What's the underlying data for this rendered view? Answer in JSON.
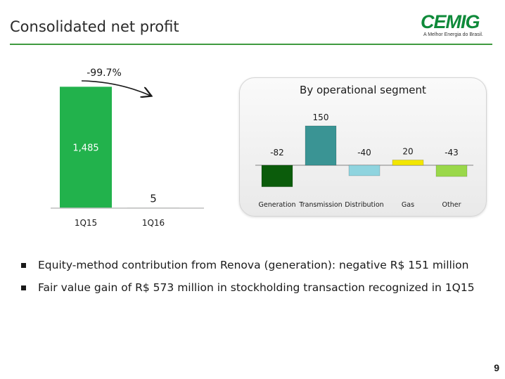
{
  "slide": {
    "title": "Consolidated net profit",
    "page_number": "9"
  },
  "logo": {
    "word": "CEMIG",
    "tagline": "A Melhor Energia do Brasil."
  },
  "colors": {
    "title_rule": "#3f9a3f",
    "brand_green": "#0f8a3a",
    "bar_1Q15": "#22b24c",
    "bar_1Q16": "#1a4a1a",
    "generation": "#0b5c0b",
    "transmission": "#3a9494",
    "distribution": "#8fd4df",
    "gas": "#f2e600",
    "other": "#9ad84a"
  },
  "chart_data": [
    {
      "type": "bar",
      "categories": [
        "1Q15",
        "1Q16"
      ],
      "values": [
        1485,
        5
      ],
      "value_labels": [
        "1,485",
        "5"
      ],
      "annotation": "-99.7%",
      "ylim": [
        0,
        1600
      ]
    },
    {
      "type": "bar",
      "title": "By operational segment",
      "categories": [
        "Generation",
        "Transmission",
        "Distribution",
        "Gas",
        "Other"
      ],
      "values": [
        -82,
        150,
        -40,
        20,
        -43
      ],
      "value_labels": [
        "-82",
        "150",
        "-40",
        "20",
        "-43"
      ],
      "ylim": [
        -100,
        160
      ]
    }
  ],
  "bullets": [
    "Equity-method contribution from Renova (generation): negative R$ 151 million",
    "Fair value gain of R$ 573 million in stockholding transaction recognized in 1Q15"
  ]
}
